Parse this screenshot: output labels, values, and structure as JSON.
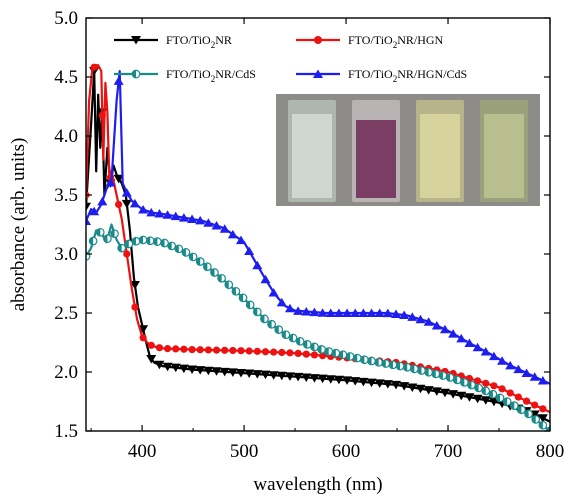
{
  "chart_data": {
    "type": "line",
    "title": "",
    "xlabel": "wavelength (nm)",
    "ylabel": "absorbance (arb. units)",
    "xlim": [
      345,
      800
    ],
    "ylim": [
      1.5,
      5.0
    ],
    "xticks": [
      400,
      500,
      600,
      700,
      800
    ],
    "yticks": [
      1.5,
      2.0,
      2.5,
      3.0,
      3.5,
      4.0,
      4.5,
      5.0
    ],
    "grid": false,
    "legend": "top, two columns",
    "legend_entries": [
      {
        "pre": "FTO/TiO",
        "sub": "2",
        "post": "NR"
      },
      {
        "pre": "FTO/TiO",
        "sub": "2",
        "post": "NR/HGN"
      },
      {
        "pre": "FTO/TiO",
        "sub": "2",
        "post": "NR/CdS"
      },
      {
        "pre": "FTO/TiO",
        "sub": "2",
        "post": "NR/HGN/CdS"
      }
    ],
    "inset": "photo of four sample films",
    "series": [
      {
        "name": "FTO/TiO2NR",
        "color": "#000000",
        "marker": "triangle-down",
        "points": [
          [
            345,
            3.4
          ],
          [
            350,
            4.1
          ],
          [
            353,
            4.55
          ],
          [
            355,
            3.7
          ],
          [
            357,
            4.35
          ],
          [
            359,
            3.9
          ],
          [
            361,
            4.2
          ],
          [
            363,
            3.5
          ],
          [
            366,
            3.9
          ],
          [
            369,
            3.6
          ],
          [
            372,
            3.75
          ],
          [
            376,
            3.65
          ],
          [
            380,
            3.6
          ],
          [
            384,
            3.5
          ],
          [
            388,
            3.2
          ],
          [
            392,
            2.8
          ],
          [
            396,
            2.55
          ],
          [
            400,
            2.4
          ],
          [
            404,
            2.25
          ],
          [
            408,
            2.12
          ],
          [
            412,
            2.08
          ],
          [
            420,
            2.05
          ],
          [
            450,
            2.02
          ],
          [
            500,
            1.99
          ],
          [
            550,
            1.96
          ],
          [
            600,
            1.93
          ],
          [
            650,
            1.89
          ],
          [
            700,
            1.82
          ],
          [
            750,
            1.74
          ],
          [
            780,
            1.66
          ],
          [
            800,
            1.58
          ]
        ]
      },
      {
        "name": "FTO/TiO2NR/HGN",
        "color": "#ee1111",
        "marker": "circle",
        "points": [
          [
            345,
            3.5
          ],
          [
            348,
            4.3
          ],
          [
            351,
            4.55
          ],
          [
            354,
            4.6
          ],
          [
            357,
            4.6
          ],
          [
            360,
            4.55
          ],
          [
            362,
            3.8
          ],
          [
            364,
            4.45
          ],
          [
            366,
            4.2
          ],
          [
            368,
            3.6
          ],
          [
            370,
            3.7
          ],
          [
            375,
            3.5
          ],
          [
            380,
            3.3
          ],
          [
            385,
            3.0
          ],
          [
            390,
            2.7
          ],
          [
            395,
            2.45
          ],
          [
            400,
            2.3
          ],
          [
            405,
            2.25
          ],
          [
            410,
            2.22
          ],
          [
            420,
            2.2
          ],
          [
            450,
            2.19
          ],
          [
            500,
            2.18
          ],
          [
            550,
            2.16
          ],
          [
            600,
            2.12
          ],
          [
            650,
            2.08
          ],
          [
            700,
            2.0
          ],
          [
            750,
            1.87
          ],
          [
            780,
            1.74
          ],
          [
            800,
            1.66
          ]
        ]
      },
      {
        "name": "FTO/TiO2NR/CdS",
        "color": "#1a8a8a",
        "marker": "half-circle",
        "points": [
          [
            345,
            2.98
          ],
          [
            350,
            3.05
          ],
          [
            355,
            3.2
          ],
          [
            360,
            3.18
          ],
          [
            365,
            3.1
          ],
          [
            370,
            3.25
          ],
          [
            375,
            3.12
          ],
          [
            380,
            3.05
          ],
          [
            390,
            3.1
          ],
          [
            400,
            3.12
          ],
          [
            420,
            3.1
          ],
          [
            440,
            3.03
          ],
          [
            460,
            2.92
          ],
          [
            480,
            2.78
          ],
          [
            500,
            2.62
          ],
          [
            520,
            2.45
          ],
          [
            540,
            2.32
          ],
          [
            560,
            2.24
          ],
          [
            580,
            2.18
          ],
          [
            600,
            2.14
          ],
          [
            620,
            2.1
          ],
          [
            640,
            2.07
          ],
          [
            660,
            2.04
          ],
          [
            680,
            2.0
          ],
          [
            700,
            1.96
          ],
          [
            720,
            1.9
          ],
          [
            740,
            1.83
          ],
          [
            760,
            1.74
          ],
          [
            780,
            1.64
          ],
          [
            800,
            1.5
          ]
        ]
      },
      {
        "name": "FTO/TiO2NR/HGN/CdS",
        "color": "#1e1ef0",
        "marker": "triangle-up",
        "points": [
          [
            345,
            3.28
          ],
          [
            350,
            3.38
          ],
          [
            355,
            3.35
          ],
          [
            360,
            3.42
          ],
          [
            365,
            3.55
          ],
          [
            370,
            3.62
          ],
          [
            375,
            4.3
          ],
          [
            378,
            4.55
          ],
          [
            381,
            3.6
          ],
          [
            385,
            3.52
          ],
          [
            390,
            3.45
          ],
          [
            400,
            3.38
          ],
          [
            410,
            3.35
          ],
          [
            420,
            3.34
          ],
          [
            440,
            3.31
          ],
          [
            460,
            3.28
          ],
          [
            480,
            3.22
          ],
          [
            500,
            3.1
          ],
          [
            510,
            2.95
          ],
          [
            520,
            2.8
          ],
          [
            530,
            2.66
          ],
          [
            540,
            2.56
          ],
          [
            550,
            2.52
          ],
          [
            580,
            2.5
          ],
          [
            600,
            2.5
          ],
          [
            620,
            2.5
          ],
          [
            640,
            2.5
          ],
          [
            660,
            2.48
          ],
          [
            680,
            2.43
          ],
          [
            700,
            2.35
          ],
          [
            720,
            2.25
          ],
          [
            740,
            2.16
          ],
          [
            760,
            2.06
          ],
          [
            780,
            1.98
          ],
          [
            800,
            1.9
          ]
        ]
      }
    ]
  }
}
